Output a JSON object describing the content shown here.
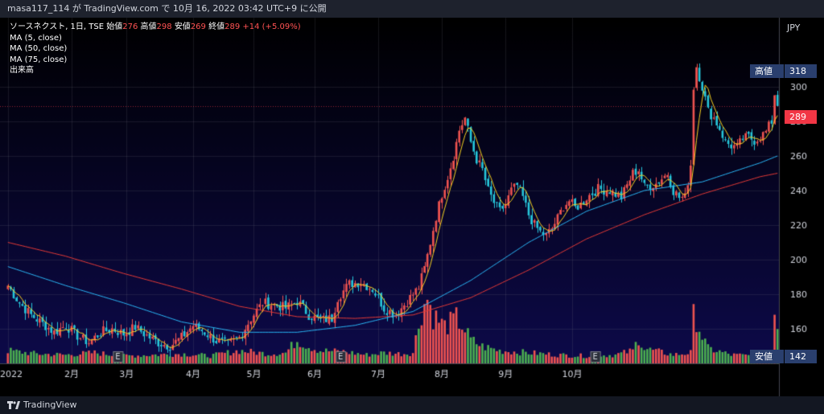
{
  "header": {
    "user": "masa117_114",
    "ga": "が",
    "site": "TradingView.com",
    "de": "で",
    "date": "10月 16, 2022 03:42 UTC+9",
    "publish": "に公開"
  },
  "legend": {
    "symbol": "ソースネクスト, 1日, TSE",
    "open_label": "始値",
    "open": "276",
    "high_label": "高値",
    "high": "298",
    "low_label": "安値",
    "low": "269",
    "close_label": "終値",
    "close": "289",
    "change": "+14 (+5.09%)",
    "ma5": "MA (5, close)",
    "ma50": "MA (50, close)",
    "ma75": "MA (75, close)",
    "volume": "出来高"
  },
  "currency": "JPY",
  "price_tags": {
    "high_label": "高値",
    "high_value": "318",
    "last_value": "289",
    "low_label": "安値",
    "low_value": "142"
  },
  "footer": {
    "brand": "TradingView"
  },
  "colors": {
    "up": "#ef5350",
    "down": "#26c6da",
    "vol_up": "#ef5350",
    "vol_down": "#4caf50",
    "ma5": "#f5d020",
    "ma50": "#29b6f6",
    "ma75": "#e53935",
    "label_blue": "#2a3f6e",
    "last_red": "#f23645"
  },
  "chart_data": {
    "type": "candlestick",
    "title": "ソースネクスト, 1日, TSE",
    "ylabel": "JPY",
    "ylim": [
      140,
      340
    ],
    "yticks": [
      160,
      180,
      200,
      220,
      240,
      260,
      280,
      300
    ],
    "xticks": [
      "2022",
      "2月",
      "3月",
      "4月",
      "5月",
      "6月",
      "7月",
      "8月",
      "9月",
      "10月"
    ],
    "earnings_markers": [
      "E",
      "E",
      "E"
    ],
    "series": [
      {
        "name": "MA (5, close)"
      },
      {
        "name": "MA (50, close)"
      },
      {
        "name": "MA (75, close)"
      },
      {
        "name": "出来高"
      }
    ],
    "price_path": [
      [
        0,
        185
      ],
      [
        4,
        175
      ],
      [
        8,
        168
      ],
      [
        12,
        163
      ],
      [
        16,
        158
      ],
      [
        20,
        162
      ],
      [
        24,
        156
      ],
      [
        28,
        152
      ],
      [
        32,
        158
      ],
      [
        36,
        160
      ],
      [
        40,
        157
      ],
      [
        44,
        161
      ],
      [
        48,
        156
      ],
      [
        52,
        152
      ],
      [
        56,
        150
      ],
      [
        60,
        155
      ],
      [
        64,
        162
      ],
      [
        68,
        158
      ],
      [
        72,
        153
      ],
      [
        76,
        151
      ],
      [
        80,
        155
      ],
      [
        84,
        166
      ],
      [
        88,
        175
      ],
      [
        92,
        174
      ],
      [
        96,
        172
      ],
      [
        100,
        176
      ],
      [
        104,
        168
      ],
      [
        108,
        165
      ],
      [
        112,
        166
      ],
      [
        114,
        178
      ],
      [
        118,
        186
      ],
      [
        122,
        187
      ],
      [
        126,
        183
      ],
      [
        128,
        178
      ],
      [
        130,
        172
      ],
      [
        134,
        168
      ],
      [
        138,
        176
      ],
      [
        142,
        184
      ],
      [
        144,
        195
      ],
      [
        146,
        210
      ],
      [
        148,
        225
      ],
      [
        150,
        238
      ],
      [
        152,
        248
      ],
      [
        154,
        260
      ],
      [
        156,
        275
      ],
      [
        158,
        282
      ],
      [
        160,
        268
      ],
      [
        162,
        258
      ],
      [
        164,
        252
      ],
      [
        166,
        240
      ],
      [
        168,
        233
      ],
      [
        170,
        228
      ],
      [
        172,
        232
      ],
      [
        174,
        240
      ],
      [
        176,
        243
      ],
      [
        178,
        236
      ],
      [
        180,
        226
      ],
      [
        182,
        220
      ],
      [
        184,
        216
      ],
      [
        186,
        214
      ],
      [
        188,
        218
      ],
      [
        190,
        224
      ],
      [
        192,
        231
      ],
      [
        194,
        234
      ],
      [
        196,
        230
      ],
      [
        198,
        232
      ],
      [
        200,
        236
      ],
      [
        204,
        241
      ],
      [
        208,
        240
      ],
      [
        212,
        236
      ],
      [
        216,
        250
      ],
      [
        218,
        252
      ],
      [
        220,
        242
      ],
      [
        224,
        244
      ],
      [
        228,
        250
      ],
      [
        230,
        240
      ],
      [
        232,
        236
      ],
      [
        234,
        236
      ],
      [
        236,
        255
      ],
      [
        237,
        300
      ],
      [
        238,
        312
      ],
      [
        240,
        300
      ],
      [
        242,
        286
      ],
      [
        244,
        282
      ],
      [
        246,
        276
      ],
      [
        248,
        268
      ],
      [
        250,
        266
      ],
      [
        252,
        265
      ],
      [
        254,
        270
      ],
      [
        256,
        271
      ],
      [
        258,
        269
      ],
      [
        260,
        271
      ],
      [
        262,
        274
      ],
      [
        264,
        280
      ],
      [
        265,
        296
      ],
      [
        266,
        290
      ]
    ],
    "ma50_path": [
      [
        0,
        196
      ],
      [
        20,
        185
      ],
      [
        40,
        175
      ],
      [
        60,
        164
      ],
      [
        80,
        158
      ],
      [
        100,
        158
      ],
      [
        120,
        162
      ],
      [
        140,
        170
      ],
      [
        160,
        188
      ],
      [
        180,
        210
      ],
      [
        200,
        228
      ],
      [
        220,
        240
      ],
      [
        240,
        245
      ],
      [
        260,
        256
      ],
      [
        266,
        260
      ]
    ],
    "ma75_path": [
      [
        0,
        210
      ],
      [
        20,
        202
      ],
      [
        40,
        192
      ],
      [
        60,
        183
      ],
      [
        80,
        173
      ],
      [
        100,
        167
      ],
      [
        120,
        166
      ],
      [
        140,
        168
      ],
      [
        160,
        178
      ],
      [
        180,
        194
      ],
      [
        200,
        212
      ],
      [
        220,
        226
      ],
      [
        240,
        238
      ],
      [
        260,
        248
      ],
      [
        266,
        250
      ]
    ],
    "volume_path": [
      [
        0,
        0.12
      ],
      [
        10,
        0.09
      ],
      [
        20,
        0.08
      ],
      [
        30,
        0.1
      ],
      [
        40,
        0.07
      ],
      [
        50,
        0.08
      ],
      [
        60,
        0.09
      ],
      [
        70,
        0.07
      ],
      [
        80,
        0.12
      ],
      [
        90,
        0.09
      ],
      [
        96,
        0.1
      ],
      [
        100,
        0.22
      ],
      [
        104,
        0.16
      ],
      [
        108,
        0.12
      ],
      [
        116,
        0.11
      ],
      [
        124,
        0.08
      ],
      [
        130,
        0.1
      ],
      [
        136,
        0.09
      ],
      [
        140,
        0.1
      ],
      [
        143,
        0.5
      ],
      [
        145,
        0.62
      ],
      [
        147,
        0.45
      ],
      [
        149,
        0.4
      ],
      [
        151,
        0.35
      ],
      [
        153,
        0.38
      ],
      [
        155,
        0.42
      ],
      [
        157,
        0.36
      ],
      [
        160,
        0.22
      ],
      [
        164,
        0.16
      ],
      [
        170,
        0.12
      ],
      [
        180,
        0.1
      ],
      [
        190,
        0.08
      ],
      [
        200,
        0.07
      ],
      [
        210,
        0.08
      ],
      [
        216,
        0.12
      ],
      [
        218,
        0.24
      ],
      [
        220,
        0.14
      ],
      [
        230,
        0.08
      ],
      [
        236,
        0.1
      ],
      [
        237,
        0.44
      ],
      [
        238,
        0.42
      ],
      [
        240,
        0.25
      ],
      [
        242,
        0.14
      ],
      [
        250,
        0.08
      ],
      [
        260,
        0.07
      ],
      [
        264,
        0.1
      ],
      [
        265,
        0.5
      ],
      [
        266,
        0.38
      ]
    ]
  }
}
